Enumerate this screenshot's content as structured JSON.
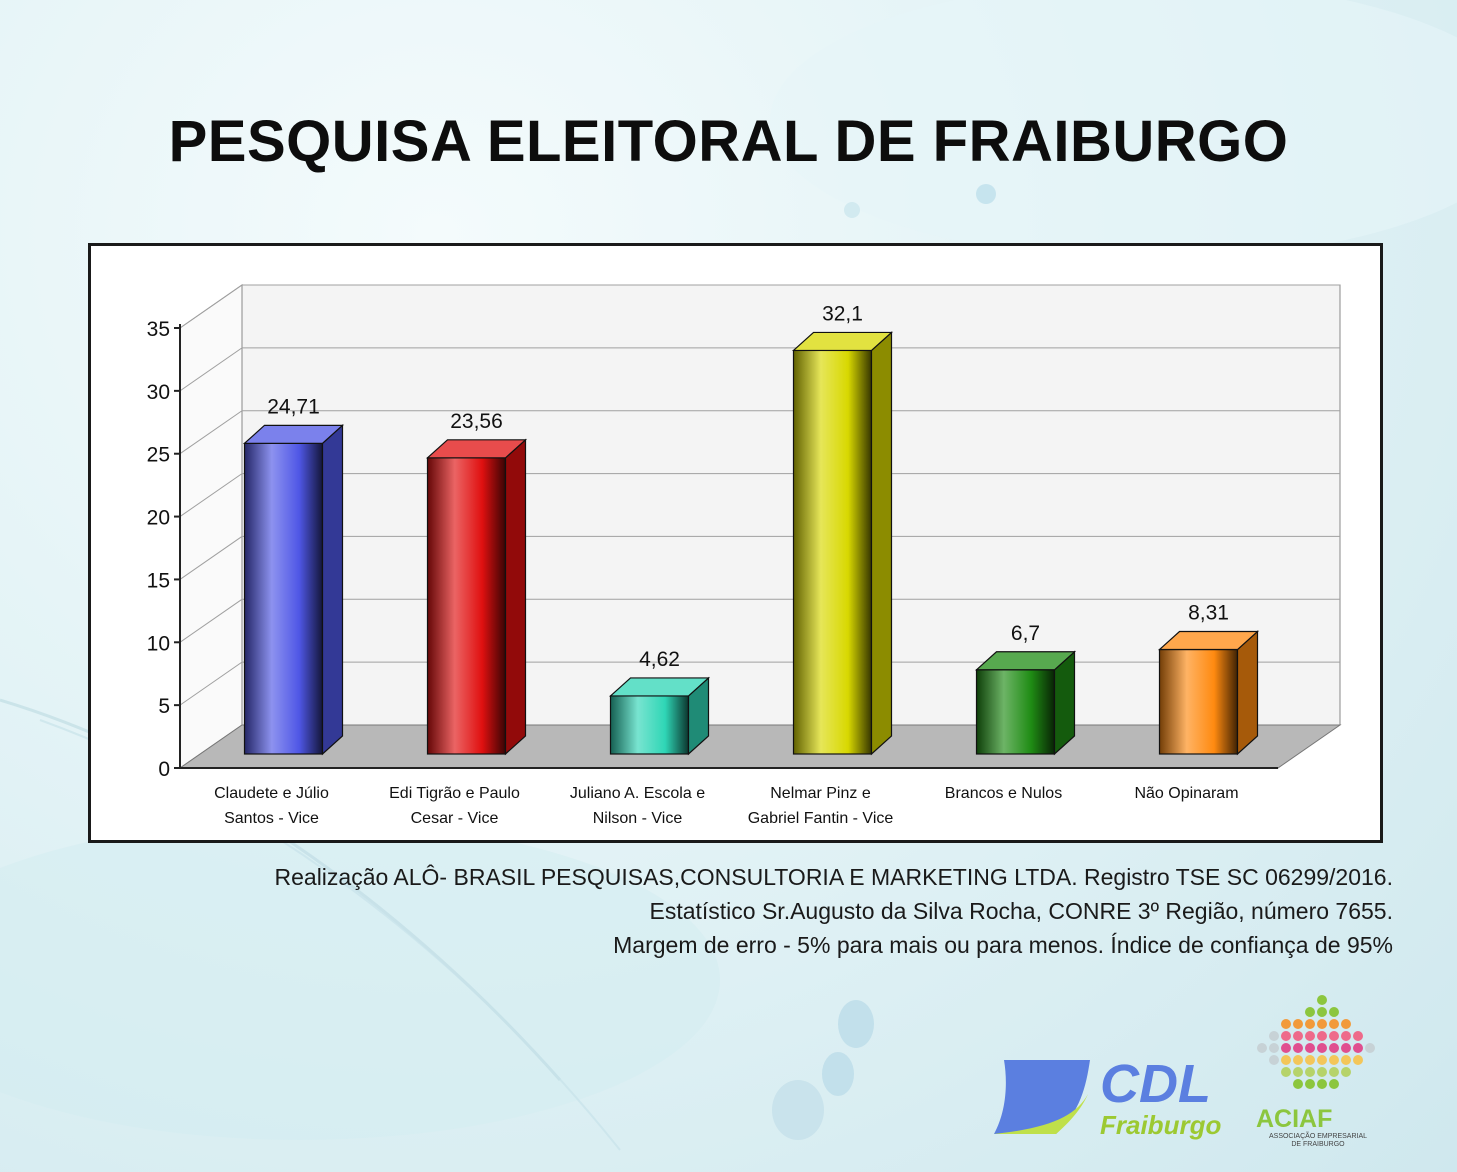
{
  "title": "PESQUISA ELEITORAL DE FRAIBURGO",
  "chart_data": {
    "type": "bar",
    "title": "",
    "xlabel": "",
    "ylabel": "",
    "ylim": [
      0,
      35
    ],
    "yticks": [
      "0",
      "5",
      "10",
      "15",
      "20",
      "25",
      "30",
      "35"
    ],
    "grid": true,
    "categories": [
      [
        "Claudete e Júlio",
        "Santos - Vice"
      ],
      [
        "Edi Tigrão e Paulo",
        "Cesar - Vice"
      ],
      [
        "Juliano A. Escola e",
        "Nilson - Vice"
      ],
      [
        "Nelmar Pinz e",
        "Gabriel Fantin - Vice"
      ],
      [
        "Brancos e Nulos"
      ],
      [
        "Não Opinaram"
      ]
    ],
    "values": [
      24.71,
      23.56,
      4.62,
      32.1,
      6.7,
      8.31
    ],
    "value_labels": [
      "24,71",
      "23,56",
      "4,62",
      "32,1",
      "6,7",
      "8,31"
    ],
    "colors": [
      "#4f57e6",
      "#e01010",
      "#2fd6b6",
      "#d8d800",
      "#1f8c14",
      "#ff8a10"
    ]
  },
  "footer": {
    "line1": "Realização ALÔ- BRASIL PESQUISAS,CONSULTORIA E MARKETING LTDA. Registro TSE SC 06299/2016.",
    "line2": "Estatístico Sr.Augusto da Silva Rocha, CONRE 3º Região, número 7655.",
    "line3": "Margem de erro - 5% para mais ou para menos. Índice de confiança de 95%"
  },
  "logos": {
    "cdl_main": "CDL",
    "cdl_sub": "Fraiburgo",
    "aciaf_main": "ACIAF",
    "aciaf_sub1": "ASSOCIAÇÃO EMPRESARIAL",
    "aciaf_sub2": "DE FRAIBURGO"
  }
}
